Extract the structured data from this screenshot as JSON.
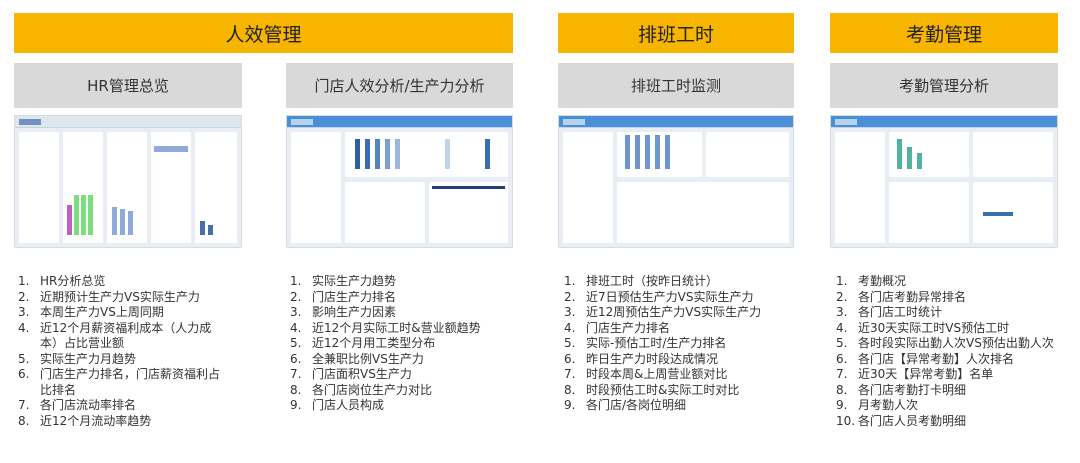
{
  "sections": [
    {
      "title": "人效管理",
      "colors": {
        "header": "#f7b500"
      }
    },
    {
      "title": "排班工时"
    },
    {
      "title": "考勤管理"
    }
  ],
  "panels": [
    {
      "title": "HR管理总览",
      "items": [
        "HR分析总览",
        "近期预计生产力VS实际生产力",
        "本周生产力VS上周同期",
        "近12个月薪资福利成本（人力成本）占比营业额",
        "实际生产力月趋势",
        "门店生产力排名，门店薪资福利占比排名",
        "各门店流动率排名",
        "近12个月流动率趋势"
      ]
    },
    {
      "title": "门店人效分析/生产力分析",
      "items": [
        "实际生产力趋势",
        "门店生产力排名",
        "影响生产力因素",
        "近12个月实际工时&营业额趋势",
        "近12个月用工类型分布",
        "全兼职比例VS生产力",
        "门店面积VS生产力",
        "各门店岗位生产力对比",
        "门店人员构成"
      ]
    },
    {
      "title": "排班工时监测",
      "items": [
        "排班工时（按昨日统计）",
        "近7日预估生产力VS实际生产力",
        "近12周预估生产力VS实际生产力",
        "门店生产力排名",
        "实际-预估工时/生产力排名",
        "昨日生产力时段达成情况",
        "时段本周&上周营业额对比",
        "时段预估工时&实际工时对比",
        "各门店/各岗位明细"
      ]
    },
    {
      "title": "考勤管理分析",
      "items": [
        "考勤概况",
        "各门店考勤异常排名",
        "各门店工时统计",
        "近30天实际工时VS预估工时",
        "各时段实际出勤人次VS预估出勤人次",
        "各门店【异常考勤】人次排名",
        "近30天【异常考勤】名单",
        "各门店考勤打卡明细",
        "月考勤人次",
        "各门店人员考勤明细"
      ]
    }
  ]
}
